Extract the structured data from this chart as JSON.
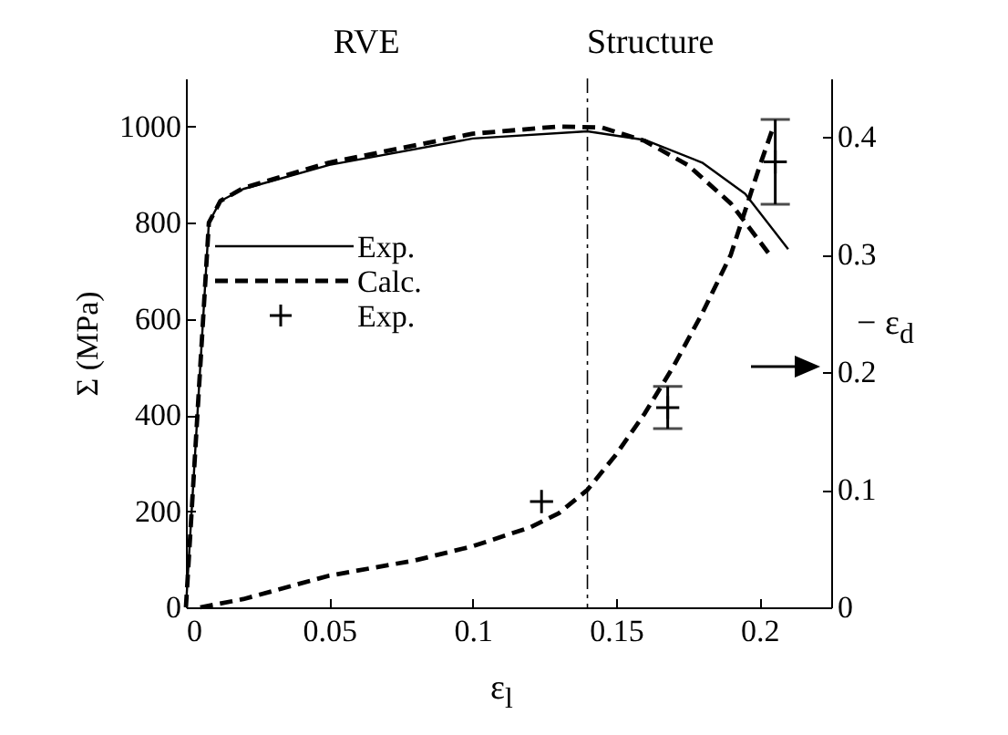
{
  "chart_data": {
    "type": "line",
    "xlabel": "ε$_{l}$",
    "ylabel": "Σ (MPa)",
    "y2label": "− ε$_{d}$",
    "annotations": [
      "RVE",
      "Structure"
    ],
    "xlim": [
      0,
      0.225
    ],
    "xticks": [
      0,
      0.05,
      0.1,
      0.15,
      0.2
    ],
    "ylim": [
      0,
      1100
    ],
    "yticks": [
      0,
      200,
      400,
      600,
      800,
      1000
    ],
    "y2lim": [
      0,
      0.45
    ],
    "y2ticks": [
      0,
      0.1,
      0.2,
      0.3,
      0.4
    ],
    "legend": "left",
    "grid": false,
    "ref_lines": [
      {
        "axis": "x",
        "value": 0.14,
        "line_style": "dashed"
      }
    ],
    "series": [
      {
        "name": "Exp.",
        "color": "#000000",
        "line_style": "solid",
        "x": [
          0,
          0.004,
          0.008,
          0.012,
          0.02,
          0.05,
          0.1,
          0.14,
          0.16,
          0.18,
          0.195,
          0.21
        ],
        "values": [
          0,
          400,
          800,
          845,
          870,
          920,
          975,
          990,
          972,
          925,
          860,
          745
        ]
      },
      {
        "name": "Calc.",
        "color": "#000000",
        "line_style": "dashed",
        "x": [
          0,
          0.004,
          0.008,
          0.012,
          0.02,
          0.05,
          0.1,
          0.13,
          0.145,
          0.16,
          0.175,
          0.19,
          0.204
        ],
        "values": [
          0,
          400,
          800,
          845,
          872,
          925,
          985,
          1000,
          998,
          970,
          920,
          840,
          730
        ]
      },
      {
        "name": "Exp.",
        "type": "scatter",
        "axis": "y2",
        "marker": "cross",
        "color": "#000000",
        "x": [
          0.124,
          0.168,
          0.2055
        ],
        "values": [
          0.09,
          0.17,
          0.379
        ],
        "errors": [
          null,
          [
            0.152,
            0.188
          ],
          [
            0.343,
            0.415
          ]
        ]
      },
      {
        "type": "line",
        "axis": "y2",
        "color": "#000000",
        "line_style": "dashed",
        "x": [
          0.005,
          0.02,
          0.05,
          0.08,
          0.1,
          0.12,
          0.13,
          0.14,
          0.15,
          0.16,
          0.17,
          0.18,
          0.19,
          0.2,
          0.205
        ],
        "values": [
          0,
          0.007,
          0.027,
          0.04,
          0.052,
          0.068,
          0.08,
          0.1,
          0.13,
          0.165,
          0.205,
          0.25,
          0.3,
          0.375,
          0.41
        ]
      }
    ]
  }
}
